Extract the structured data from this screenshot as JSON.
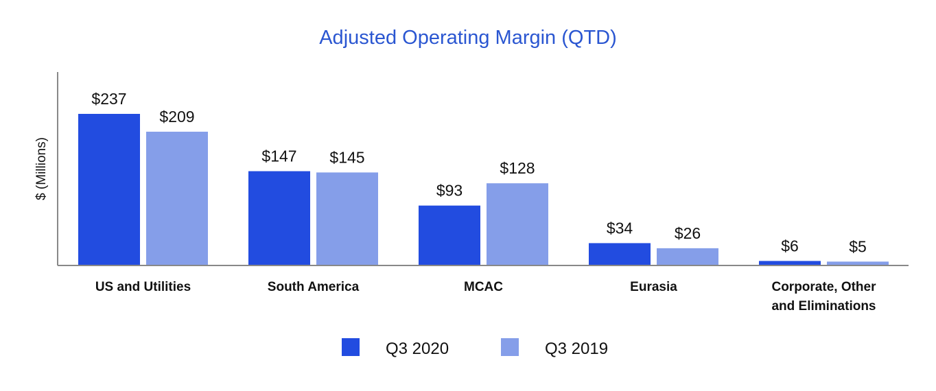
{
  "chart_data": {
    "type": "bar",
    "title": "Adjusted Operating Margin (QTD)",
    "ylabel": "$ (Millions)",
    "xlabel": "",
    "ylim": [
      0,
      300
    ],
    "categories": [
      [
        "US and Utilities"
      ],
      [
        "South America"
      ],
      [
        "MCAC"
      ],
      [
        "Eurasia"
      ],
      [
        "Corporate, Other",
        "and Eliminations"
      ]
    ],
    "series": [
      {
        "name": "Q3 2020",
        "values": [
          237,
          147,
          93,
          34,
          6
        ],
        "labels": [
          "$237",
          "$147",
          "$93",
          "$34",
          "$6"
        ],
        "color": "#224ce0"
      },
      {
        "name": "Q3 2019",
        "values": [
          209,
          145,
          128,
          26,
          5
        ],
        "labels": [
          "$209",
          "$145",
          "$128",
          "$26",
          "$5"
        ],
        "color": "#859ee9"
      }
    ],
    "legend_position": "bottom",
    "grid": false
  },
  "colors": {
    "title": "#2a56d1",
    "axis": "#888888",
    "text": "#111111"
  }
}
